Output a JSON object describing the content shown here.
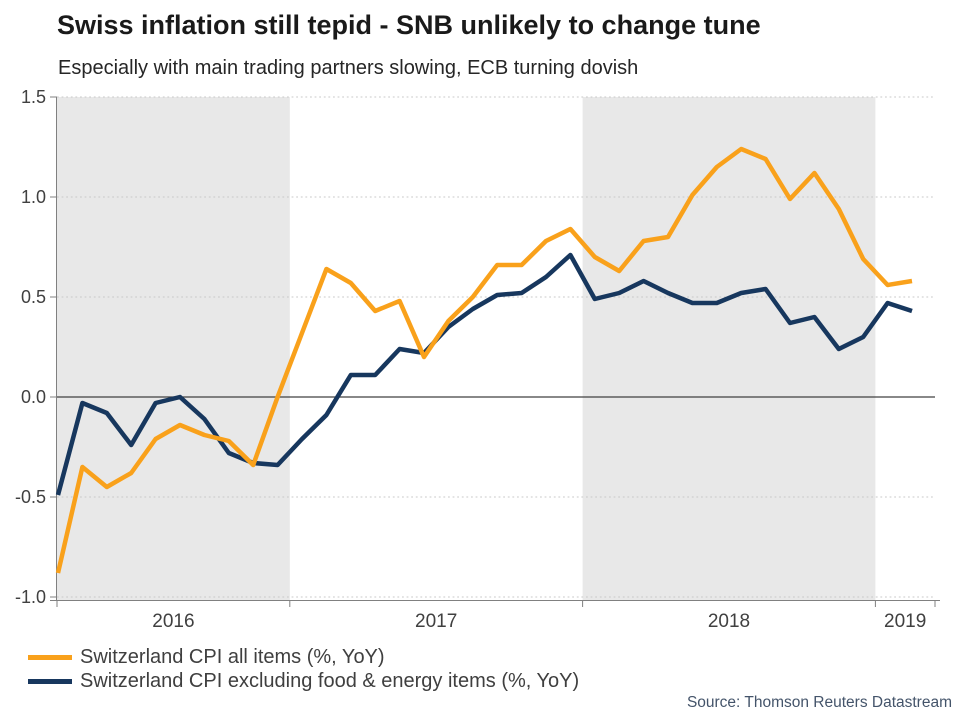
{
  "header": {
    "title": "Swiss inflation still tepid - SNB unlikely to change tune",
    "subtitle": "Especially with main trading partners slowing, ECB turning dovish"
  },
  "footer": {
    "source": "Source: Thomson Reuters Datastream"
  },
  "chart_data": {
    "type": "line",
    "frequency": "monthly",
    "x_start": "2016-03",
    "x_end": "2019-02",
    "months": [
      "2016-03",
      "2016-04",
      "2016-05",
      "2016-06",
      "2016-07",
      "2016-08",
      "2016-09",
      "2016-10",
      "2016-11",
      "2016-12",
      "2017-01",
      "2017-02",
      "2017-03",
      "2017-04",
      "2017-05",
      "2017-06",
      "2017-07",
      "2017-08",
      "2017-09",
      "2017-10",
      "2017-11",
      "2017-12",
      "2018-01",
      "2018-02",
      "2018-03",
      "2018-04",
      "2018-05",
      "2018-06",
      "2018-07",
      "2018-08",
      "2018-09",
      "2018-10",
      "2018-11",
      "2018-12",
      "2019-01",
      "2019-02"
    ],
    "series": [
      {
        "name": "Switzerland CPI all items (%, YoY)",
        "color": "#F9A11B",
        "values": [
          -0.88,
          -0.35,
          -0.45,
          -0.38,
          -0.21,
          -0.14,
          -0.19,
          -0.22,
          -0.34,
          0.0,
          0.32,
          0.64,
          0.57,
          0.43,
          0.48,
          0.2,
          0.38,
          0.5,
          0.66,
          0.66,
          0.78,
          0.84,
          0.7,
          0.63,
          0.78,
          0.8,
          1.01,
          1.15,
          1.24,
          1.19,
          0.99,
          1.12,
          0.94,
          0.69,
          0.56,
          0.58
        ]
      },
      {
        "name": "Switzerland CPI excluding food & energy items (%, YoY)",
        "color": "#17375E",
        "values": [
          -0.49,
          -0.03,
          -0.08,
          -0.24,
          -0.03,
          0.0,
          -0.11,
          -0.28,
          -0.33,
          -0.34,
          -0.21,
          -0.09,
          0.11,
          0.11,
          0.24,
          0.22,
          0.35,
          0.44,
          0.51,
          0.52,
          0.6,
          0.71,
          0.49,
          0.52,
          0.58,
          0.52,
          0.47,
          0.47,
          0.52,
          0.54,
          0.37,
          0.4,
          0.24,
          0.3,
          0.47,
          0.43
        ]
      }
    ],
    "ylim": [
      -1.0,
      1.5
    ],
    "y_ticks": [
      1.5,
      1.0,
      0.5,
      0.0,
      -0.5,
      -1.0
    ],
    "y_tick_labels": [
      "1.5",
      "1.0",
      "0.5",
      "0.0",
      "-0.5",
      "-1.0"
    ],
    "x_tick_labels": [
      "2016",
      "2017",
      "2018",
      "2019"
    ],
    "year_bands": [
      {
        "label": "2016",
        "from_idx": -0.5,
        "to_idx": 9.5,
        "shaded": true
      },
      {
        "label": "2017",
        "from_idx": 9.5,
        "to_idx": 21.5,
        "shaded": false
      },
      {
        "label": "2018",
        "from_idx": 21.5,
        "to_idx": 33.5,
        "shaded": true
      },
      {
        "label": "2019",
        "from_idx": 33.5,
        "to_idx": 36.5,
        "shaded": false
      }
    ],
    "grid": "dotted horizontal, solid zero line",
    "legend_position": "bottom-left"
  },
  "colors": {
    "band": "#E8E8E8",
    "grid": "#C8C8C8",
    "zero_line": "#404040",
    "axis": "#808080",
    "axis_text": "#404040",
    "title_text": "#1A1A1A",
    "source_text": "#44546A"
  }
}
